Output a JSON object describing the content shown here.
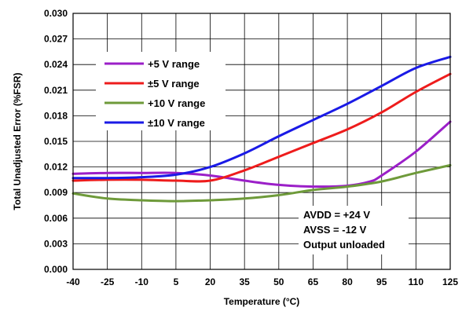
{
  "chart_data": {
    "type": "line",
    "xlabel": "Temperature (°C)",
    "ylabel": "Total Unadjusted Error (%FSR)",
    "xlim": [
      -40,
      125
    ],
    "ylim": [
      0.0,
      0.03
    ],
    "x_ticks": [
      "-40",
      "-25",
      "-10",
      "5",
      "20",
      "35",
      "50",
      "65",
      "80",
      "95",
      "110",
      "125"
    ],
    "y_ticks": [
      "0.000",
      "0.003",
      "0.006",
      "0.009",
      "0.012",
      "0.015",
      "0.018",
      "0.021",
      "0.024",
      "0.027",
      "0.030"
    ],
    "grid": true,
    "legend_position": "top-left",
    "series": [
      {
        "name": "+5 V range",
        "color": "#9b1fc8",
        "x": [
          -40,
          -25,
          -10,
          5,
          20,
          35,
          50,
          65,
          80,
          90,
          95,
          110,
          125
        ],
        "y": [
          0.0112,
          0.0113,
          0.0113,
          0.0113,
          0.011,
          0.0104,
          0.0099,
          0.0097,
          0.0098,
          0.0103,
          0.011,
          0.0138,
          0.0173
        ]
      },
      {
        "name": "±5 V range",
        "color": "#ee1c1c",
        "x": [
          -40,
          -25,
          -10,
          5,
          20,
          35,
          50,
          65,
          80,
          95,
          110,
          125
        ],
        "y": [
          0.0104,
          0.0105,
          0.0105,
          0.0104,
          0.0104,
          0.0116,
          0.0132,
          0.0148,
          0.0164,
          0.0184,
          0.0208,
          0.0229
        ]
      },
      {
        "name": "+10 V range",
        "color": "#6e9a3a",
        "x": [
          -40,
          -25,
          -10,
          5,
          20,
          35,
          50,
          65,
          80,
          95,
          110,
          125
        ],
        "y": [
          0.0089,
          0.0083,
          0.0081,
          0.008,
          0.0081,
          0.0083,
          0.0087,
          0.0093,
          0.0097,
          0.0103,
          0.0113,
          0.0122
        ]
      },
      {
        "name": "±10 V range",
        "color": "#1a1ae6",
        "x": [
          -40,
          -25,
          -10,
          5,
          20,
          35,
          50,
          65,
          80,
          95,
          110,
          125
        ],
        "y": [
          0.0107,
          0.0107,
          0.0108,
          0.0111,
          0.012,
          0.0136,
          0.0156,
          0.0175,
          0.0194,
          0.0215,
          0.0236,
          0.0249
        ]
      }
    ],
    "annotations": [
      "AVDD = +24 V",
      "AVSS = -12 V",
      "Output unloaded"
    ]
  }
}
